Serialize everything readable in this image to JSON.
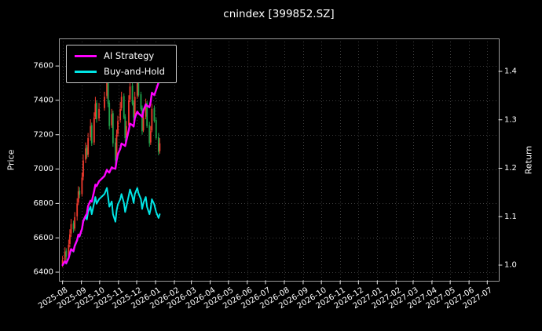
{
  "title": "cnindex [399852.SZ]",
  "axes": {
    "left_label": "Price",
    "right_label": "Return"
  },
  "colors": {
    "background": "#000000",
    "text": "#ffffff",
    "tick": "#e8e8e8",
    "grid": "#3d3d3d",
    "frame": "#9a9a9a",
    "up": "#f23b2e",
    "down": "#1fa24a"
  },
  "chart_data": {
    "type": "candlestick+line",
    "title": "cnindex [399852.SZ]",
    "xlabel": "",
    "ylabel_left": "Price",
    "ylabel_right": "Return",
    "grid": "dotted",
    "legend_position": "upper-left",
    "x_domain": [
      "2025-07-26",
      "2027-07-20"
    ],
    "x_ticks": [
      "2025-08",
      "2025-09",
      "2025-10",
      "2025-11",
      "2025-12",
      "2026-01",
      "2026-02",
      "2026-03",
      "2026-04",
      "2026-05",
      "2026-06",
      "2026-07",
      "2026-08",
      "2026-09",
      "2026-10",
      "2026-11",
      "2026-12",
      "2027-01",
      "2027-02",
      "2027-03",
      "2027-04",
      "2027-05",
      "2027-06",
      "2027-07"
    ],
    "price_ylim": [
      6350,
      7760
    ],
    "price_ticks": [
      6400,
      6600,
      6800,
      7000,
      7200,
      7400,
      7600
    ],
    "return_ylim": [
      0.9676,
      1.468
    ],
    "return_ticks": [
      1.0,
      1.1,
      1.2,
      1.3,
      1.4
    ],
    "dates": [
      "2025-08-01",
      "2025-08-05",
      "2025-08-07",
      "2025-08-11",
      "2025-08-13",
      "2025-08-15",
      "2025-08-19",
      "2025-08-21",
      "2025-08-25",
      "2025-08-27",
      "2025-08-29",
      "2025-09-02",
      "2025-09-04",
      "2025-09-08",
      "2025-09-10",
      "2025-09-12",
      "2025-09-16",
      "2025-09-18",
      "2025-09-22",
      "2025-09-24",
      "2025-09-26",
      "2025-09-30",
      "2025-10-09",
      "2025-10-13",
      "2025-10-15",
      "2025-10-17",
      "2025-10-21",
      "2025-10-23",
      "2025-10-27",
      "2025-10-29",
      "2025-10-31",
      "2025-11-04",
      "2025-11-06",
      "2025-11-10",
      "2025-11-12",
      "2025-11-14",
      "2025-11-18",
      "2025-11-20",
      "2025-11-24",
      "2025-11-26",
      "2025-11-28",
      "2025-12-02",
      "2025-12-04",
      "2025-12-08",
      "2025-12-10",
      "2025-12-12",
      "2025-12-16",
      "2025-12-18",
      "2025-12-22",
      "2025-12-24",
      "2025-12-26",
      "2025-12-30",
      "2026-01-02",
      "2026-01-06",
      "2026-01-08"
    ],
    "ohlc": {
      "open": [
        6445,
        6470,
        6525,
        6495,
        6565,
        6625,
        6685,
        6655,
        6725,
        6805,
        6875,
        6855,
        6955,
        7055,
        7125,
        7085,
        7185,
        7255,
        7155,
        7305,
        7385,
        7295,
        7355,
        7425,
        7505,
        7385,
        7255,
        7325,
        7155,
        7055,
        7205,
        7285,
        7355,
        7425,
        7305,
        7185,
        7255,
        7405,
        7485,
        7385,
        7305,
        7425,
        7505,
        7435,
        7355,
        7225,
        7305,
        7385,
        7255,
        7155,
        7225,
        7355,
        7285,
        7185,
        7105
      ],
      "high": [
        6495,
        6545,
        6540,
        6590,
        6650,
        6710,
        6700,
        6750,
        6830,
        6900,
        6895,
        6980,
        7085,
        7155,
        7140,
        7210,
        7290,
        7270,
        7330,
        7420,
        7400,
        7385,
        7450,
        7545,
        7520,
        7400,
        7350,
        7340,
        7180,
        7230,
        7310,
        7390,
        7450,
        7440,
        7320,
        7280,
        7430,
        7520,
        7500,
        7400,
        7450,
        7540,
        7515,
        7450,
        7370,
        7330,
        7410,
        7395,
        7275,
        7250,
        7380,
        7370,
        7300,
        7210,
        7180
      ],
      "low": [
        6430,
        6455,
        6470,
        6480,
        6545,
        6605,
        6630,
        6640,
        6700,
        6790,
        6830,
        6840,
        6935,
        7035,
        7060,
        7070,
        7165,
        7135,
        7140,
        7290,
        7270,
        7280,
        7340,
        7410,
        7360,
        7230,
        7240,
        7130,
        7020,
        7040,
        7190,
        7270,
        7340,
        7290,
        7160,
        7170,
        7240,
        7390,
        7370,
        7280,
        7290,
        7410,
        7420,
        7340,
        7200,
        7215,
        7290,
        7240,
        7130,
        7140,
        7215,
        7270,
        7170,
        7080,
        7090
      ],
      "close": [
        6470,
        6520,
        6490,
        6560,
        6620,
        6680,
        6650,
        6720,
        6800,
        6870,
        6850,
        6950,
        7050,
        7120,
        7080,
        7180,
        7250,
        7150,
        7300,
        7380,
        7290,
        7350,
        7420,
        7500,
        7380,
        7250,
        7320,
        7150,
        7050,
        7200,
        7280,
        7350,
        7420,
        7300,
        7180,
        7250,
        7400,
        7480,
        7380,
        7300,
        7420,
        7500,
        7430,
        7350,
        7220,
        7300,
        7380,
        7250,
        7150,
        7220,
        7350,
        7280,
        7180,
        7100,
        7150
      ]
    },
    "series": [
      {
        "name": "AI Strategy",
        "color": "#ff00ff",
        "axis": "return",
        "values": [
          1.0,
          1.008,
          1.004,
          1.015,
          1.024,
          1.033,
          1.029,
          1.04,
          1.052,
          1.063,
          1.06,
          1.075,
          1.091,
          1.102,
          1.106,
          1.122,
          1.133,
          1.131,
          1.153,
          1.166,
          1.163,
          1.173,
          1.184,
          1.197,
          1.193,
          1.191,
          1.202,
          1.2,
          1.199,
          1.216,
          1.229,
          1.24,
          1.251,
          1.248,
          1.246,
          1.257,
          1.279,
          1.292,
          1.289,
          1.286,
          1.304,
          1.317,
          1.313,
          1.309,
          1.306,
          1.319,
          1.332,
          1.329,
          1.326,
          1.337,
          1.356,
          1.351,
          1.362,
          1.377,
          1.392
        ]
      },
      {
        "name": "Buy-and-Hold",
        "color": "#00e5e5",
        "axis": "return",
        "values": [
          1.0,
          1.0077,
          1.0031,
          1.0139,
          1.0232,
          1.0325,
          1.0278,
          1.0386,
          1.051,
          1.0618,
          1.0587,
          1.0742,
          1.0896,
          1.1005,
          1.0943,
          1.1097,
          1.1206,
          1.1051,
          1.1283,
          1.1406,
          1.1267,
          1.136,
          1.1468,
          1.1592,
          1.1406,
          1.1206,
          1.1314,
          1.1051,
          1.0896,
          1.1128,
          1.1252,
          1.136,
          1.1468,
          1.1283,
          1.1097,
          1.1206,
          1.1437,
          1.1561,
          1.1406,
          1.1283,
          1.1468,
          1.1592,
          1.1484,
          1.136,
          1.1159,
          1.1283,
          1.1406,
          1.1206,
          1.1051,
          1.1159,
          1.136,
          1.1252,
          1.1097,
          1.0974,
          1.1051
        ]
      }
    ]
  }
}
